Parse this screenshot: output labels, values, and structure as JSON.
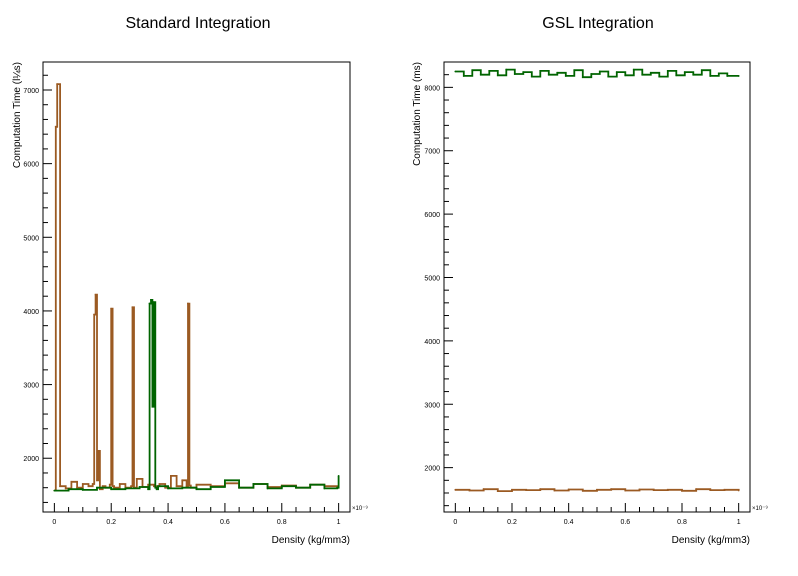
{
  "chart_data": [
    {
      "type": "line",
      "title": "Standard Integration",
      "xlabel": "Density (kg/mm3)",
      "ylabel": "Computation Time (l¼s)",
      "x_exponent_label": "×10⁻⁹",
      "xlim": [
        -0.04,
        1.04
      ],
      "ylim": [
        1270,
        7380
      ],
      "x_ticks": [
        "0",
        "0.2",
        "0.4",
        "0.6",
        "0.8",
        "1"
      ],
      "y_ticks": [
        "2000",
        "3000",
        "4000",
        "5000",
        "6000",
        "7000"
      ],
      "grid": false,
      "series": [
        {
          "color": "#9b5a22",
          "x": [
            0.0,
            0.005,
            0.01,
            0.02,
            0.04,
            0.06,
            0.08,
            0.1,
            0.12,
            0.135,
            0.14,
            0.145,
            0.15,
            0.155,
            0.16,
            0.17,
            0.18,
            0.195,
            0.2,
            0.205,
            0.21,
            0.23,
            0.25,
            0.27,
            0.275,
            0.28,
            0.29,
            0.31,
            0.33,
            0.35,
            0.37,
            0.39,
            0.41,
            0.43,
            0.45,
            0.465,
            0.47,
            0.475,
            0.48,
            0.5,
            0.55,
            0.6,
            0.65,
            0.7,
            0.75,
            0.8,
            0.85,
            0.9,
            0.95,
            1.0
          ],
          "y": [
            1560,
            6500,
            7080,
            1620,
            1590,
            1680,
            1600,
            1650,
            1620,
            1650,
            3950,
            4220,
            1700,
            2100,
            1580,
            1620,
            1600,
            1640,
            4030,
            1620,
            1600,
            1650,
            1600,
            1620,
            4050,
            1600,
            1720,
            1610,
            1640,
            1620,
            1650,
            1600,
            1760,
            1620,
            1700,
            1620,
            4100,
            1630,
            1600,
            1640,
            1620,
            1660,
            1600,
            1650,
            1610,
            1630,
            1600,
            1640,
            1620,
            1600
          ]
        },
        {
          "color": "#006400",
          "x": [
            0.0,
            0.05,
            0.1,
            0.15,
            0.2,
            0.25,
            0.3,
            0.33,
            0.335,
            0.34,
            0.345,
            0.35,
            0.355,
            0.36,
            0.365,
            0.4,
            0.45,
            0.5,
            0.55,
            0.6,
            0.65,
            0.7,
            0.75,
            0.8,
            0.85,
            0.9,
            0.95,
            0.995,
            1.0
          ],
          "y": [
            1560,
            1580,
            1570,
            1600,
            1580,
            1590,
            1610,
            1580,
            4100,
            4150,
            2700,
            4120,
            1600,
            1580,
            1620,
            1590,
            1600,
            1580,
            1610,
            1700,
            1600,
            1650,
            1590,
            1620,
            1600,
            1640,
            1590,
            1600,
            1760
          ]
        }
      ]
    },
    {
      "type": "line",
      "title": "GSL Integration",
      "xlabel": "Density (kg/mm3)",
      "ylabel": "Computation Time (ms)",
      "x_exponent_label": "×10⁻⁹",
      "xlim": [
        -0.04,
        1.04
      ],
      "ylim": [
        1300,
        8400
      ],
      "x_ticks": [
        "0",
        "0.2",
        "0.4",
        "0.6",
        "0.8",
        "1"
      ],
      "y_ticks": [
        "2000",
        "3000",
        "4000",
        "5000",
        "6000",
        "7000",
        "8000"
      ],
      "grid": false,
      "series": [
        {
          "color": "#9b5a22",
          "x": [
            0.0,
            0.05,
            0.1,
            0.15,
            0.2,
            0.25,
            0.3,
            0.35,
            0.4,
            0.45,
            0.5,
            0.55,
            0.6,
            0.65,
            0.7,
            0.75,
            0.8,
            0.85,
            0.9,
            0.95,
            1.0
          ],
          "y": [
            1650,
            1640,
            1660,
            1630,
            1650,
            1645,
            1660,
            1640,
            1655,
            1635,
            1650,
            1660,
            1640,
            1655,
            1645,
            1650,
            1635,
            1660,
            1645,
            1650,
            1640
          ]
        },
        {
          "color": "#006400",
          "x": [
            0.0,
            0.03,
            0.06,
            0.09,
            0.12,
            0.15,
            0.18,
            0.21,
            0.24,
            0.27,
            0.3,
            0.33,
            0.36,
            0.39,
            0.42,
            0.45,
            0.48,
            0.51,
            0.54,
            0.57,
            0.6,
            0.63,
            0.66,
            0.69,
            0.72,
            0.75,
            0.78,
            0.81,
            0.84,
            0.87,
            0.9,
            0.93,
            0.96,
            1.0
          ],
          "y": [
            8250,
            8180,
            8270,
            8200,
            8260,
            8190,
            8280,
            8210,
            8240,
            8170,
            8260,
            8200,
            8230,
            8180,
            8270,
            8160,
            8210,
            8250,
            8170,
            8240,
            8190,
            8280,
            8200,
            8230,
            8170,
            8260,
            8190,
            8240,
            8200,
            8270,
            8180,
            8220,
            8180,
            8180
          ]
        }
      ]
    }
  ]
}
